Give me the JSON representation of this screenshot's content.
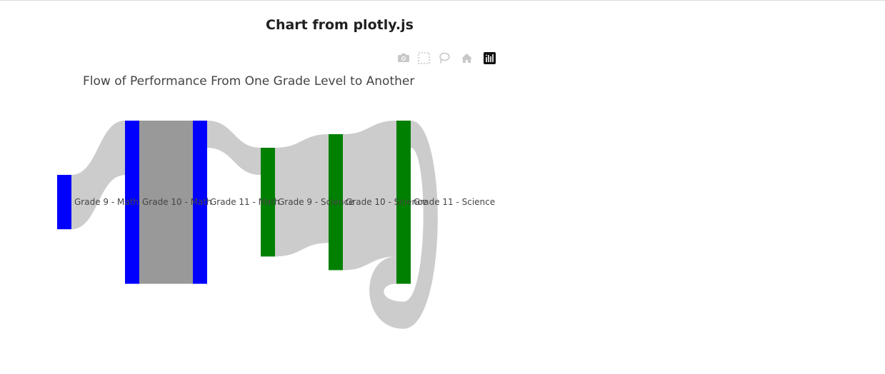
{
  "page": {
    "heading": "Chart from plotly.js"
  },
  "modebar": [
    {
      "icon": "camera-icon"
    },
    {
      "icon": "box-select-icon"
    },
    {
      "icon": "lasso-icon"
    },
    {
      "icon": "home-icon"
    },
    {
      "icon": "plotly-logo-icon"
    }
  ],
  "chart_data": {
    "type": "sankey",
    "title": "Flow of Performance From One Grade Level to Another",
    "nodes": [
      {
        "label": "Grade 9 - Math",
        "color": "#0000ff"
      },
      {
        "label": "Grade 10 - Math",
        "color": "#0000ff"
      },
      {
        "label": "Grade 11 - Math",
        "color": "#0000ff"
      },
      {
        "label": "Grade 9 - Science",
        "color": "#008000"
      },
      {
        "label": "Grade 10 - Science",
        "color": "#008000"
      },
      {
        "label": "Grade 11 - Science",
        "color": "#008000"
      }
    ],
    "links": [
      {
        "source": 0,
        "target": 1,
        "value": 4
      },
      {
        "source": 1,
        "target": 2,
        "value": 12
      },
      {
        "source": 2,
        "target": 3,
        "value": 2
      },
      {
        "source": 3,
        "target": 4,
        "value": 8
      },
      {
        "source": 4,
        "target": 5,
        "value": 10
      },
      {
        "source": 5,
        "target": 5,
        "value": 2
      }
    ],
    "link_color": "#cccccc",
    "highlighted_link_color": "#999999"
  }
}
